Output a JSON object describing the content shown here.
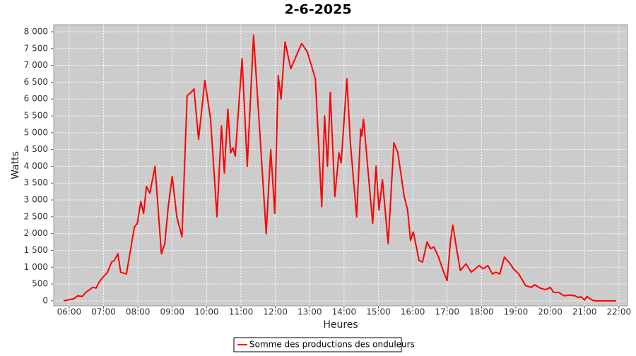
{
  "chart_data": {
    "type": "line",
    "title": "2-6-2025",
    "x_label": "Heures",
    "y_label": "Watts",
    "legend": "bottom",
    "grid": true,
    "xlim": [
      "05:33",
      "22:15"
    ],
    "xticks": [
      "06:00",
      "07:00",
      "08:00",
      "09:00",
      "10:00",
      "11:00",
      "12:00",
      "13:00",
      "14:00",
      "15:00",
      "16:00",
      "17:00",
      "18:00",
      "19:00",
      "20:00",
      "21:00",
      "22:00"
    ],
    "ylim": [
      -150,
      8210
    ],
    "yticks": [
      0,
      {
        "value": 500,
        "label": "500"
      },
      {
        "value": 1000,
        "label": "1 000"
      },
      {
        "value": 1500,
        "label": "1 500"
      },
      {
        "value": 2000,
        "label": "2 000"
      },
      {
        "value": 2500,
        "label": "2 500"
      },
      {
        "value": 3000,
        "label": "3 000"
      },
      {
        "value": 3500,
        "label": "3 500"
      },
      {
        "value": 4000,
        "label": "4 000"
      },
      {
        "value": 4500,
        "label": "4 500"
      },
      {
        "value": 5000,
        "label": "5 000"
      },
      {
        "value": 5500,
        "label": "5 500"
      },
      {
        "value": 6000,
        "label": "6 000"
      },
      {
        "value": 6500,
        "label": "6 500"
      },
      {
        "value": 7000,
        "label": "7 000"
      },
      {
        "value": 7500,
        "label": "7 500"
      },
      {
        "value": 8000,
        "label": "8 000"
      }
    ],
    "x": [
      "05:50",
      "06:00",
      "06:08",
      "06:15",
      "06:23",
      "06:29",
      "06:35",
      "06:41",
      "06:47",
      "06:52",
      "06:59",
      "07:07",
      "07:14",
      "07:19",
      "07:25",
      "07:30",
      "07:40",
      "07:50",
      "07:54",
      "07:59",
      "08:05",
      "08:10",
      "08:15",
      "08:21",
      "08:30",
      "08:41",
      "08:47",
      "08:53",
      "09:00",
      "09:08",
      "09:17",
      "09:26",
      "09:33",
      "09:38",
      "09:46",
      "09:57",
      "10:07",
      "10:18",
      "10:26",
      "10:31",
      "10:37",
      "10:42",
      "10:46",
      "10:50",
      "11:02",
      "11:11",
      "11:22",
      "11:33",
      "11:44",
      "11:52",
      "11:59",
      "12:05",
      "12:10",
      "12:17",
      "12:27",
      "12:37",
      "12:46",
      "12:56",
      "13:10",
      "13:21",
      "13:26",
      "13:31",
      "13:36",
      "13:44",
      "13:51",
      "13:55",
      "14:05",
      "14:11",
      "14:22",
      "14:29",
      "14:31",
      "14:34",
      "14:50",
      "14:56",
      "15:01",
      "15:07",
      "15:17",
      "15:27",
      "15:34",
      "15:45",
      "15:51",
      "15:56",
      "16:01",
      "16:11",
      "16:17",
      "16:25",
      "16:31",
      "16:37",
      "16:45",
      "16:53",
      "17:00",
      "17:06",
      "17:10",
      "17:17",
      "17:23",
      "17:33",
      "17:42",
      "17:56",
      "18:03",
      "18:11",
      "18:19",
      "18:25",
      "18:32",
      "18:40",
      "18:50",
      "18:56",
      "19:05",
      "19:17",
      "19:27",
      "19:33",
      "19:42",
      "19:52",
      "20:00",
      "20:06",
      "20:15",
      "20:24",
      "20:34",
      "20:43",
      "20:49",
      "20:54",
      "21:00",
      "21:04",
      "21:13",
      "21:19",
      "21:55"
    ],
    "series": [
      {
        "name": "Somme des productions des onduleurs",
        "color": "#ff0000",
        "values": [
          0,
          30,
          60,
          150,
          130,
          250,
          320,
          400,
          380,
          550,
          700,
          850,
          1150,
          1200,
          1400,
          850,
          800,
          1800,
          2200,
          2300,
          2950,
          2600,
          3400,
          3200,
          4000,
          1400,
          1700,
          2800,
          3700,
          2500,
          1900,
          6100,
          6200,
          6300,
          4800,
          6550,
          5400,
          2500,
          5200,
          3800,
          5700,
          4400,
          4550,
          4300,
          7200,
          4000,
          7900,
          5000,
          2000,
          4500,
          2600,
          6700,
          6000,
          7700,
          6900,
          7300,
          7650,
          7400,
          6600,
          2800,
          5500,
          4000,
          6200,
          3100,
          4400,
          4100,
          6600,
          4700,
          2500,
          5100,
          4900,
          5400,
          2300,
          4000,
          2700,
          3600,
          1700,
          4700,
          4400,
          3100,
          2700,
          1800,
          2050,
          1200,
          1150,
          1750,
          1550,
          1600,
          1300,
          900,
          600,
          1800,
          2250,
          1500,
          900,
          1100,
          850,
          1050,
          950,
          1050,
          800,
          850,
          800,
          1300,
          1100,
          950,
          800,
          450,
          400,
          480,
          380,
          330,
          400,
          250,
          250,
          150,
          170,
          150,
          100,
          120,
          20,
          130,
          20,
          0,
          0
        ]
      }
    ]
  }
}
